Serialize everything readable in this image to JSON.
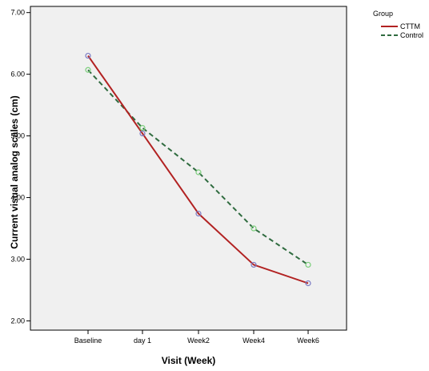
{
  "chart_data": {
    "type": "line",
    "title": "",
    "xlabel": "Visit (Week)",
    "ylabel": "Current visual analog scales (cm)",
    "categories": [
      "Baseline",
      "day 1",
      "Week2",
      "Week4",
      "Week6"
    ],
    "ylim": [
      1.85,
      7.1
    ],
    "yticks": [
      "2.00",
      "3.00",
      "4.00",
      "5.00",
      "6.00",
      "7.00"
    ],
    "grid": false,
    "legend_title": "Group",
    "legend_position": "top-right outside",
    "series": [
      {
        "name": "CTTM",
        "values": [
          6.3,
          5.04,
          3.74,
          2.91,
          2.61
        ],
        "color": "#b22222",
        "dash": "solid",
        "marker_color": "#7b7bc4"
      },
      {
        "name": "Control",
        "values": [
          6.07,
          5.13,
          4.41,
          3.5,
          2.91
        ],
        "color": "#2f6b3f",
        "dash": "dashed",
        "marker_color": "#7ccf7c"
      }
    ],
    "plot_background": "#f0f0f0"
  }
}
